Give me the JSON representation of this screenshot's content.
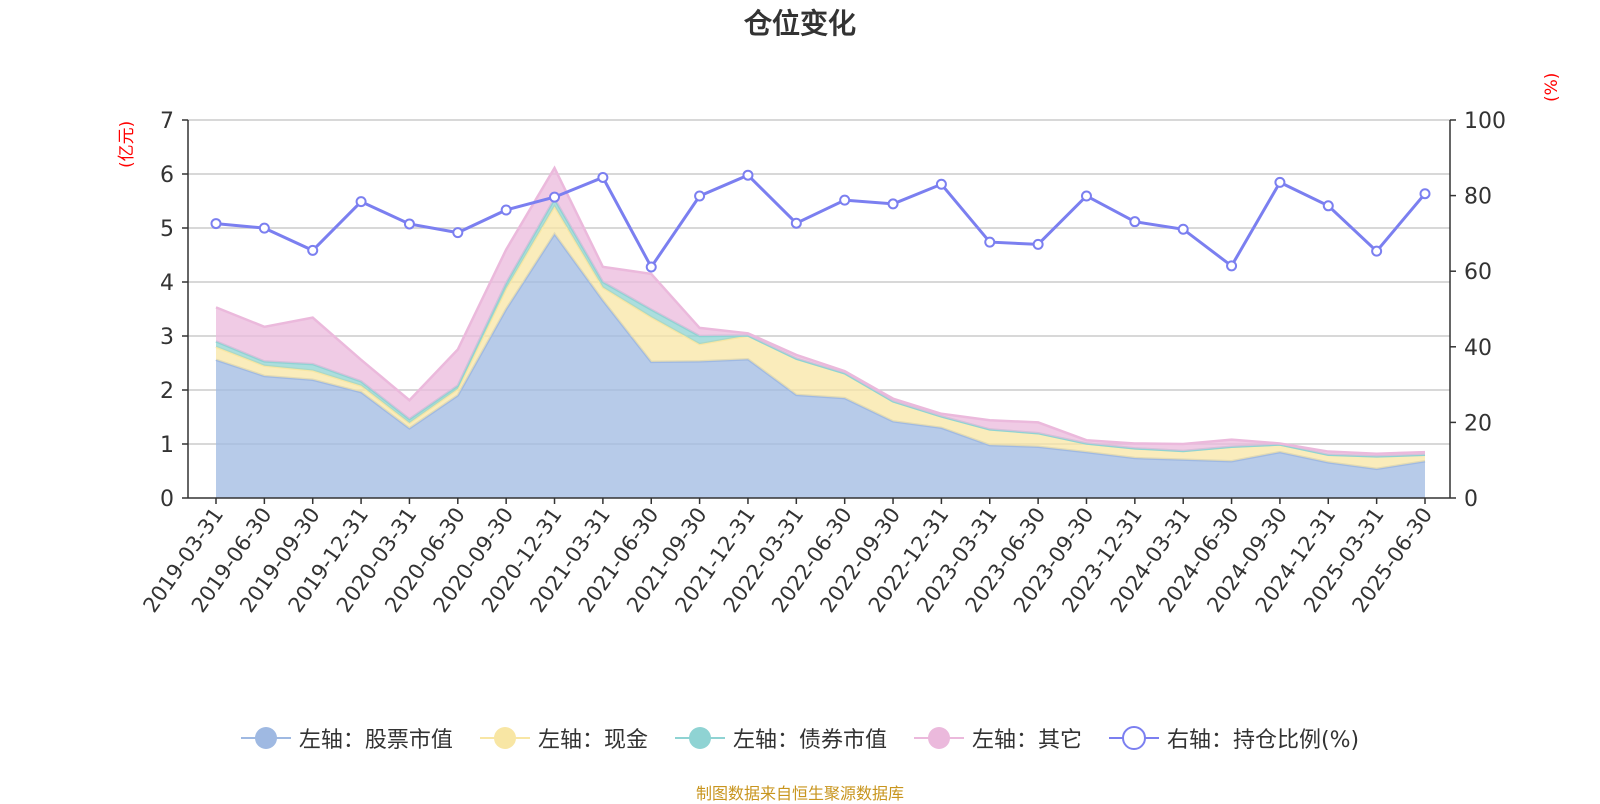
{
  "page": {
    "title": "仓位变化",
    "source_note": "制图数据来自恒生聚源数据库"
  },
  "chart_data": {
    "type": "area",
    "title": "仓位变化",
    "categories": [
      "2019-03-31",
      "2019-06-30",
      "2019-09-30",
      "2019-12-31",
      "2020-03-31",
      "2020-06-30",
      "2020-09-30",
      "2020-12-31",
      "2021-03-31",
      "2021-06-30",
      "2021-09-30",
      "2021-12-31",
      "2022-03-31",
      "2022-06-30",
      "2022-09-30",
      "2022-12-31",
      "2023-03-31",
      "2023-06-30",
      "2023-09-30",
      "2023-12-31",
      "2024-03-31",
      "2024-06-30",
      "2024-09-30",
      "2024-12-31",
      "2025-03-31",
      "2025-06-30"
    ],
    "left_axis": {
      "unit": "(亿元)",
      "ylim": [
        0,
        7
      ],
      "ticks": [
        0,
        1,
        2,
        3,
        4,
        5,
        6,
        7
      ]
    },
    "right_axis": {
      "unit": "(%)",
      "ylim": [
        0,
        100
      ],
      "ticks": [
        0,
        20,
        40,
        60,
        80,
        100
      ]
    },
    "grid": true,
    "legend_position": "bottom",
    "stacked_series": [
      {
        "name": "左轴：股票市值",
        "color": "#9fb9e2",
        "values": [
          2.56,
          2.26,
          2.19,
          1.96,
          1.29,
          1.9,
          3.5,
          4.89,
          3.66,
          2.52,
          2.53,
          2.57,
          1.91,
          1.85,
          1.42,
          1.3,
          0.98,
          0.95,
          0.85,
          0.74,
          0.71,
          0.68,
          0.85,
          0.66,
          0.54,
          0.68
        ]
      },
      {
        "name": "左轴：现金",
        "color": "#f8e6a4",
        "values": [
          0.24,
          0.19,
          0.17,
          0.12,
          0.1,
          0.12,
          0.38,
          0.51,
          0.24,
          0.83,
          0.32,
          0.44,
          0.67,
          0.46,
          0.37,
          0.21,
          0.29,
          0.25,
          0.16,
          0.18,
          0.16,
          0.27,
          0.14,
          0.14,
          0.23,
          0.12
        ]
      },
      {
        "name": "左轴：债券市值",
        "color": "#8fd3d3",
        "values": [
          0.1,
          0.08,
          0.12,
          0.08,
          0.07,
          0.06,
          0.1,
          0.14,
          0.1,
          0.14,
          0.15,
          0,
          0,
          0,
          0,
          0,
          0,
          0,
          0,
          0,
          0,
          0,
          0,
          0,
          0,
          0
        ]
      },
      {
        "name": "左轴：其它",
        "color": "#ebb9dc",
        "values": [
          0.63,
          0.64,
          0.86,
          0.4,
          0.35,
          0.67,
          0.62,
          0.57,
          0.28,
          0.66,
          0.15,
          0.04,
          0.07,
          0.04,
          0.05,
          0.05,
          0.17,
          0.2,
          0.06,
          0.09,
          0.13,
          0.13,
          0.02,
          0.06,
          0.05,
          0.05
        ]
      }
    ],
    "line_series": {
      "name": "右轴：持仓比例(%)",
      "color": "#7b7ff0",
      "axis": "right",
      "values": [
        72.6,
        71.4,
        65.5,
        78.4,
        72.5,
        70.2,
        76.2,
        79.6,
        84.8,
        61.1,
        79.9,
        85.4,
        72.7,
        78.8,
        77.8,
        83.0,
        67.7,
        67.1,
        79.9,
        73.1,
        71.1,
        61.4,
        83.5,
        77.3,
        65.3,
        80.5
      ]
    }
  }
}
